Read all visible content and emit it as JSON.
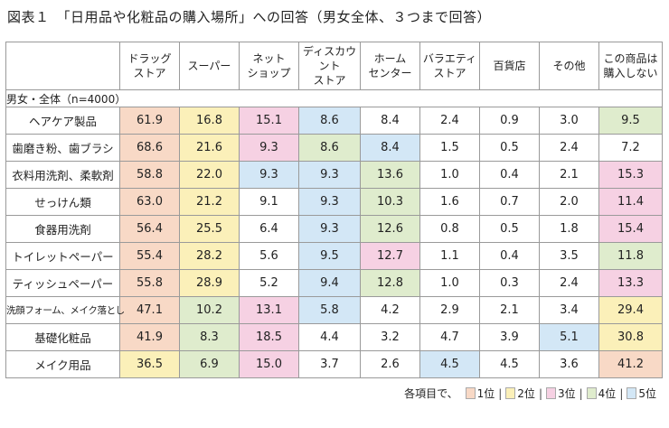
{
  "chart_data": {
    "type": "table",
    "title": "図表１　「日用品や化粧品の購入場所」への回答（男女全体、３つまで回答）",
    "sample_note": "男女・全体（n=4000）",
    "columns": [
      "ドラッグ\nストア",
      "スーパー",
      "ネット\nショップ",
      "ディスカウント\nストア",
      "ホーム\nセンター",
      "バラエティ\nストア",
      "百貨店",
      "その他",
      "この商品は\n購入しない"
    ],
    "rows": [
      {
        "label": "ヘアケア製品",
        "values": [
          61.9,
          16.8,
          15.1,
          8.6,
          8.4,
          2.4,
          0.9,
          3.0,
          9.5
        ],
        "ranks": [
          1,
          2,
          3,
          5,
          0,
          0,
          0,
          0,
          4
        ]
      },
      {
        "label": "歯磨き粉、歯ブラシ",
        "values": [
          68.6,
          21.6,
          9.3,
          8.6,
          8.4,
          1.5,
          0.5,
          2.4,
          7.2
        ],
        "ranks": [
          1,
          2,
          3,
          4,
          5,
          0,
          0,
          0,
          0
        ]
      },
      {
        "label": "衣料用洗剤、柔軟剤",
        "values": [
          58.8,
          22.0,
          9.3,
          9.3,
          13.6,
          1.0,
          0.4,
          2.1,
          15.3
        ],
        "ranks": [
          1,
          2,
          5,
          5,
          4,
          0,
          0,
          0,
          3
        ]
      },
      {
        "label": "せっけん類",
        "values": [
          63.0,
          21.2,
          9.1,
          9.3,
          10.3,
          1.6,
          0.7,
          2.0,
          11.4
        ],
        "ranks": [
          1,
          2,
          0,
          5,
          4,
          0,
          0,
          0,
          3
        ]
      },
      {
        "label": "食器用洗剤",
        "values": [
          56.4,
          25.5,
          6.4,
          9.3,
          12.6,
          0.8,
          0.5,
          1.8,
          15.4
        ],
        "ranks": [
          1,
          2,
          0,
          5,
          4,
          0,
          0,
          0,
          3
        ]
      },
      {
        "label": "トイレットペーパー",
        "values": [
          55.4,
          28.2,
          5.6,
          9.5,
          12.7,
          1.1,
          0.4,
          3.5,
          11.8
        ],
        "ranks": [
          1,
          2,
          0,
          5,
          3,
          0,
          0,
          0,
          4
        ]
      },
      {
        "label": "ティッシュペーパー",
        "values": [
          55.8,
          28.9,
          5.2,
          9.4,
          12.8,
          1.0,
          0.3,
          2.4,
          13.3
        ],
        "ranks": [
          1,
          2,
          0,
          5,
          4,
          0,
          0,
          0,
          3
        ]
      },
      {
        "label": "洗顔フォーム、メイク落とし",
        "values": [
          47.1,
          10.2,
          13.1,
          5.8,
          4.2,
          2.9,
          2.1,
          3.4,
          29.4
        ],
        "ranks": [
          1,
          4,
          3,
          5,
          0,
          0,
          0,
          0,
          2
        ]
      },
      {
        "label": "基礎化粧品",
        "values": [
          41.9,
          8.3,
          18.5,
          4.4,
          3.2,
          4.7,
          3.9,
          5.1,
          30.8
        ],
        "ranks": [
          1,
          4,
          3,
          0,
          0,
          0,
          0,
          5,
          2
        ]
      },
      {
        "label": "メイク用品",
        "values": [
          36.5,
          6.9,
          15.0,
          3.7,
          2.6,
          4.5,
          4.5,
          3.6,
          41.2
        ],
        "ranks": [
          2,
          4,
          3,
          0,
          0,
          5,
          0,
          0,
          1
        ]
      }
    ],
    "legend": {
      "lead": "各項目で、",
      "items": [
        {
          "rank": 1,
          "label": "1位",
          "color": "#f8d9c6"
        },
        {
          "rank": 2,
          "label": "2位",
          "color": "#fbf0b9"
        },
        {
          "rank": 3,
          "label": "3位",
          "color": "#f6d1e3"
        },
        {
          "rank": 4,
          "label": "4位",
          "color": "#dfeccd"
        },
        {
          "rank": 5,
          "label": "5位",
          "color": "#d3e7f6"
        }
      ]
    }
  }
}
